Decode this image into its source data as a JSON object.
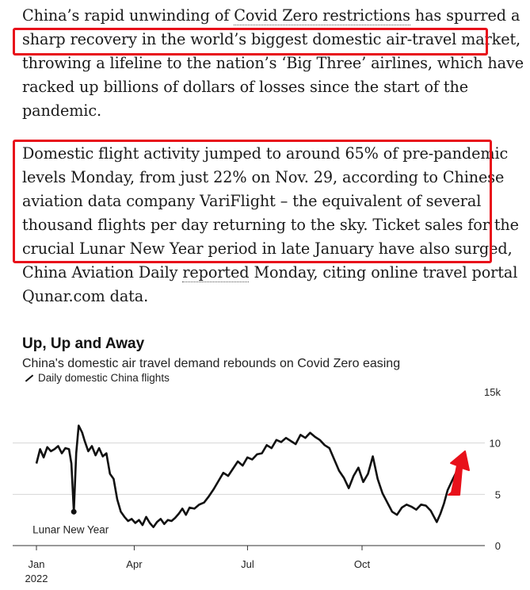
{
  "article": {
    "para1": {
      "l1_pre": "China’s rapid unwinding of ",
      "l1_link": "Covid Zero restrictions",
      "l1_post": " has spurred a",
      "l2": "sharp recovery in the world’s biggest domestic air-travel market,",
      "l3": "throwing a lifeline to the nation’s ‘Big Three’ airlines, which have",
      "l4": "racked up billions of dollars of losses since the start of the",
      "l5": "pandemic."
    },
    "para2": {
      "l1": "Domestic flight activity jumped to around 65% of pre-pandemic",
      "l2": "levels Monday, from just 22% on Nov. 29, according to Chinese",
      "l3": "aviation data company VariFlight – the equivalent of several",
      "l4": "thousand flights per day returning to the sky. Ticket sales for the",
      "l5": "crucial Lunar New Year period in late January have also surged,",
      "l6_pre": "China Aviation Daily ",
      "l6_link": "reported",
      "l6_post": " Monday, citing online travel portal",
      "l7": "Qunar.com data."
    }
  },
  "colors": {
    "highlight": "#e8101a",
    "arrow": "#e8101a",
    "line": "#111111"
  },
  "chart_data": {
    "type": "line",
    "title": "Up, Up and Away",
    "subtitle": "China's domestic air travel demand rebounds on Covid Zero easing",
    "series": [
      {
        "name": "Daily domestic China flights",
        "x": [
          "2022-01-01",
          "2022-01-04",
          "2022-01-07",
          "2022-01-10",
          "2022-01-13",
          "2022-01-16",
          "2022-01-19",
          "2022-01-22",
          "2022-01-25",
          "2022-01-28",
          "2022-01-30",
          "2022-02-01",
          "2022-02-03",
          "2022-02-05",
          "2022-02-08",
          "2022-02-10",
          "2022-02-13",
          "2022-02-16",
          "2022-02-19",
          "2022-02-22",
          "2022-02-25",
          "2022-02-28",
          "2022-03-03",
          "2022-03-06",
          "2022-03-09",
          "2022-03-12",
          "2022-03-15",
          "2022-03-18",
          "2022-03-21",
          "2022-03-24",
          "2022-03-27",
          "2022-03-30",
          "2022-04-02",
          "2022-04-05",
          "2022-04-08",
          "2022-04-11",
          "2022-04-14",
          "2022-04-17",
          "2022-04-20",
          "2022-04-23",
          "2022-04-26",
          "2022-04-29",
          "2022-05-02",
          "2022-05-05",
          "2022-05-08",
          "2022-05-12",
          "2022-05-16",
          "2022-05-20",
          "2022-05-24",
          "2022-05-28",
          "2022-06-01",
          "2022-06-05",
          "2022-06-09",
          "2022-06-13",
          "2022-06-17",
          "2022-06-21",
          "2022-06-25",
          "2022-06-29",
          "2022-07-03",
          "2022-07-07",
          "2022-07-11",
          "2022-07-15",
          "2022-07-19",
          "2022-07-23",
          "2022-07-27",
          "2022-07-31",
          "2022-08-04",
          "2022-08-08",
          "2022-08-12",
          "2022-08-16",
          "2022-08-20",
          "2022-08-24",
          "2022-08-28",
          "2022-09-01",
          "2022-09-05",
          "2022-09-09",
          "2022-09-13",
          "2022-09-17",
          "2022-09-21",
          "2022-09-25",
          "2022-09-29",
          "2022-10-03",
          "2022-10-07",
          "2022-10-11",
          "2022-10-15",
          "2022-10-19",
          "2022-10-23",
          "2022-10-27",
          "2022-10-31",
          "2022-11-04",
          "2022-11-08",
          "2022-11-12",
          "2022-11-16",
          "2022-11-20",
          "2022-11-24",
          "2022-11-29",
          "2022-12-02",
          "2022-12-05",
          "2022-12-08",
          "2022-12-12",
          "2022-12-15",
          "2022-12-19"
        ],
        "values": [
          8.0,
          9.4,
          8.6,
          9.6,
          9.2,
          9.4,
          9.7,
          9.0,
          9.5,
          9.4,
          8.0,
          3.3,
          9.0,
          11.7,
          11.0,
          10.2,
          9.2,
          9.7,
          8.8,
          9.5,
          8.7,
          9.0,
          7.0,
          6.5,
          4.5,
          3.3,
          2.8,
          2.4,
          2.6,
          2.2,
          2.5,
          2.0,
          2.8,
          2.2,
          1.8,
          2.3,
          2.6,
          2.1,
          2.5,
          2.4,
          2.7,
          3.1,
          3.6,
          3.0,
          3.7,
          3.6,
          4.0,
          4.2,
          4.8,
          5.5,
          6.3,
          7.1,
          6.8,
          7.5,
          8.2,
          7.8,
          8.6,
          8.4,
          8.9,
          9.0,
          9.8,
          9.5,
          10.3,
          10.1,
          10.5,
          10.2,
          9.9,
          10.8,
          10.5,
          11.0,
          10.6,
          10.3,
          9.8,
          9.5,
          8.4,
          7.3,
          6.6,
          5.6,
          6.8,
          7.6,
          6.2,
          7.0,
          8.7,
          6.5,
          5.1,
          4.2,
          3.3,
          3.0,
          3.7,
          4.0,
          3.8,
          3.5,
          4.0,
          3.9,
          3.4,
          2.3,
          3.1,
          4.1,
          5.4,
          6.4,
          7.1,
          6.9
        ]
      }
    ],
    "annotation": "Lunar New Year",
    "ylim": [
      0,
      15
    ],
    "yticks": [
      "15k",
      "10",
      "5",
      "0"
    ],
    "xticks": [
      "Jan",
      "Apr",
      "Jul",
      "Oct"
    ],
    "xtick_year": "2022",
    "grid": true
  }
}
